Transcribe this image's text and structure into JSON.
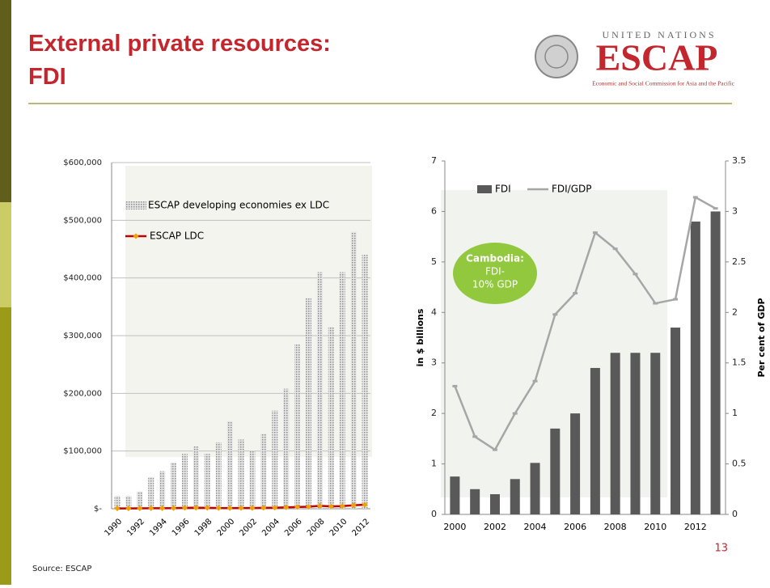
{
  "header": {
    "title": "External private resources: FDI",
    "logo_top": "UNITED NATIONS",
    "logo_name": "ESCAP",
    "logo_sub": "Economic and Social Commission for Asia and the Pacific"
  },
  "chart_data": [
    {
      "type": "bar",
      "categories": [
        "1990",
        null,
        "1992",
        null,
        "1994",
        null,
        "1996",
        null,
        "1998",
        null,
        "2000",
        null,
        "2002",
        null,
        "2004",
        null,
        "2006",
        null,
        "2008",
        null,
        "2010",
        null,
        "2012"
      ],
      "series": [
        {
          "name": "ESCAP developing economies ex LDC",
          "color": "#8c8c8c",
          "values": [
            22000,
            22000,
            30000,
            55000,
            65000,
            80000,
            95000,
            108000,
            95000,
            115000,
            152000,
            120000,
            100000,
            130000,
            170000,
            208000,
            285000,
            365000,
            410000,
            315000,
            410000,
            480000,
            440000
          ]
        },
        {
          "name": "ESCAP LDC",
          "type": "line",
          "color": "#c00000",
          "marker_color": "#f0a000",
          "values": [
            500,
            600,
            700,
            800,
            900,
            1000,
            1500,
            1800,
            1600,
            1200,
            1000,
            1200,
            1300,
            1500,
            1800,
            2500,
            3000,
            3500,
            5000,
            4000,
            4500,
            6000,
            7000
          ]
        }
      ],
      "ylim": [
        0,
        600000
      ],
      "yticks": [
        {
          "value": 0,
          "label": "$-"
        },
        {
          "value": 100000,
          "label": "$100,000"
        },
        {
          "value": 200000,
          "label": "$200,000"
        },
        {
          "value": 300000,
          "label": "$300,000"
        },
        {
          "value": 400000,
          "label": "$400,000"
        },
        {
          "value": 500000,
          "label": "$500,000"
        },
        {
          "value": 600000,
          "label": "$600,000"
        }
      ],
      "grid": true
    },
    {
      "type": "bar",
      "categories": [
        "2000",
        null,
        "2002",
        null,
        "2004",
        null,
        "2006",
        null,
        "2008",
        null,
        "2010",
        null,
        "2012",
        null
      ],
      "series": [
        {
          "name": "FDI",
          "color": "#595959",
          "values": [
            0.75,
            0.5,
            0.4,
            0.7,
            1.02,
            1.7,
            2.0,
            2.9,
            3.2,
            3.2,
            3.2,
            3.7,
            5.8,
            6.0
          ]
        },
        {
          "name": "FDI/GDP",
          "type": "line",
          "axis": "y2",
          "color": "#a6a6a6",
          "values": [
            1.27,
            0.77,
            0.64,
            1.0,
            1.32,
            1.98,
            2.19,
            2.79,
            2.63,
            2.38,
            2.09,
            2.13,
            3.14,
            3.03
          ]
        }
      ],
      "ylabel": "in $ billions",
      "y2label": "Per cent of GDP",
      "ylim": [
        0,
        7
      ],
      "yticks": [
        0,
        1,
        2,
        3,
        4,
        5,
        6,
        7
      ],
      "y2lim": [
        0,
        3.5
      ],
      "y2ticks": [
        0,
        0.5,
        1,
        1.5,
        2,
        2.5,
        3,
        3.5
      ],
      "grid": false,
      "annotation": [
        "Cambodia:",
        "FDI-",
        "10% GDP"
      ],
      "annotation_color": "#92c83e"
    }
  ],
  "page_number": "13",
  "source": "Source: ESCAP"
}
